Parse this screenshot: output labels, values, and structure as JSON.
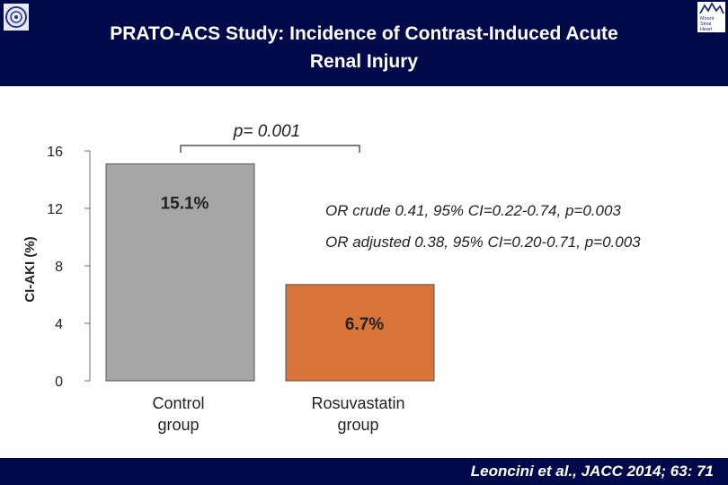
{
  "header": {
    "title_line1": "PRATO-ACS Study:  Incidence of Contrast-Induced Acute",
    "title_line2": "Renal Injury"
  },
  "footer": {
    "citation": "Leoncini et al., JACC 2014; 63: 71"
  },
  "logos": {
    "left": "university-seal",
    "right": "Mount Sinai Heart",
    "right_lines": [
      "Mount",
      "Sinai",
      "Heart"
    ]
  },
  "colors": {
    "header_bg": "#000a4a",
    "bar_control": "#a6a6a6",
    "bar_rosuvastatin": "#d8733a"
  },
  "chart_data": {
    "type": "bar",
    "categories": [
      [
        "Control",
        "group"
      ],
      [
        "Rosuvastatin",
        "group"
      ]
    ],
    "values": [
      15.1,
      6.7
    ],
    "data_labels": [
      "15.1%",
      "6.7%"
    ],
    "ylabel": "CI-AKI (%)",
    "ylim": [
      0,
      16
    ],
    "yticks": [
      0,
      4,
      8,
      12,
      16
    ],
    "grid": false,
    "comparison_label": "p= 0.001",
    "annotations": [
      "OR crude 0.41, 95% CI=0.22-0.74, p=0.003",
      "OR adjusted 0.38, 95% CI=0.20-0.71, p=0.003"
    ]
  }
}
